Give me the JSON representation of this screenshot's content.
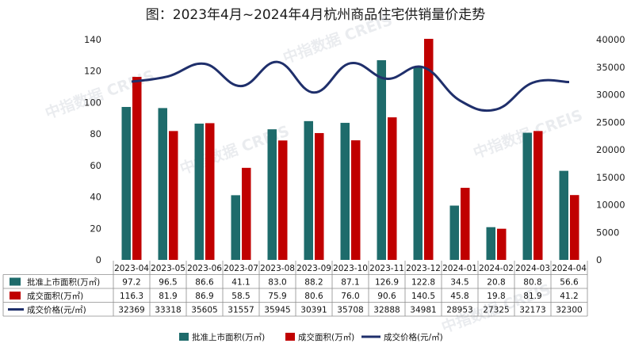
{
  "chart_data": {
    "type": "bar",
    "title": "图：2023年4月~2024年4月杭州商品住宅供销量价走势",
    "categories": [
      "2023-04",
      "2023-05",
      "2023-06",
      "2023-07",
      "2023-08",
      "2023-09",
      "2023-10",
      "2023-11",
      "2023-12",
      "2024-01",
      "2024-02",
      "2024-03",
      "2024-04"
    ],
    "series": [
      {
        "name": "批准上市面积(万㎡)",
        "type": "bar",
        "axis": "left",
        "color": "#1e6b6b",
        "values": [
          97.2,
          96.5,
          86.6,
          41.1,
          83.0,
          88.2,
          87.1,
          126.9,
          122.8,
          34.5,
          20.8,
          80.8,
          56.6
        ],
        "labels": [
          "97.2",
          "96.5",
          "86.6",
          "41.1",
          "83.0",
          "88.2",
          "87.1",
          "126.9",
          "122.8",
          "34.5",
          "20.8",
          "80.8",
          "56.6"
        ]
      },
      {
        "name": "成交面积(万㎡)",
        "type": "bar",
        "axis": "left",
        "color": "#c00000",
        "values": [
          116.3,
          81.9,
          86.9,
          58.5,
          75.9,
          80.6,
          76.0,
          90.6,
          140.5,
          45.8,
          19.8,
          81.9,
          41.2
        ],
        "labels": [
          "116.3",
          "81.9",
          "86.9",
          "58.5",
          "75.9",
          "80.6",
          "76.0",
          "90.6",
          "140.5",
          "45.8",
          "19.8",
          "81.9",
          "41.2"
        ]
      },
      {
        "name": "成交价格(元/㎡)",
        "type": "line",
        "axis": "right",
        "color": "#1f2f6b",
        "values": [
          32369,
          33318,
          35605,
          31557,
          35945,
          30391,
          35708,
          32888,
          34981,
          28953,
          27325,
          32173,
          32300
        ],
        "labels": [
          "32369",
          "33318",
          "35605",
          "31557",
          "35945",
          "30391",
          "35708",
          "32888",
          "34981",
          "28953",
          "27325",
          "32173",
          "32300"
        ]
      }
    ],
    "y_left": {
      "ticks": [
        "0",
        "20",
        "40",
        "60",
        "80",
        "100",
        "120",
        "140"
      ],
      "range": [
        0,
        140
      ]
    },
    "y_right": {
      "ticks": [
        "0",
        "5000",
        "10000",
        "15000",
        "20000",
        "25000",
        "30000",
        "35000",
        "40000"
      ],
      "range": [
        0,
        40000
      ]
    },
    "legend_position": "bottom",
    "grid": false,
    "data_table": true
  },
  "watermarks": [
    "中指数据 CREIS",
    "中指数据 CREIS",
    "中指数据 CREIS",
    "中指数据 CREIS",
    "中指数据 CREIS"
  ]
}
